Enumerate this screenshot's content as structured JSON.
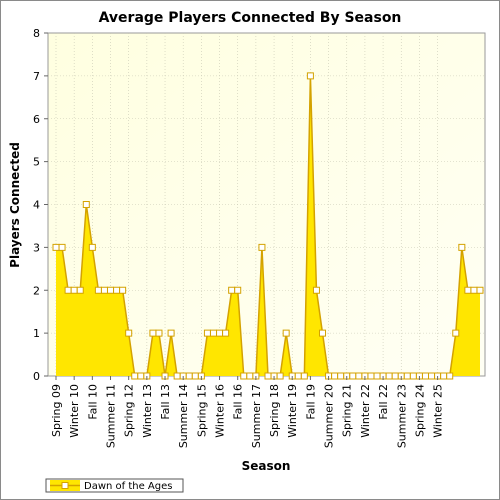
{
  "chart_data": {
    "type": "area",
    "title": "Average Players Connected By Season",
    "xlabel": "Season",
    "ylabel": "Players Connected",
    "ylim": [
      0,
      8
    ],
    "yticks": [
      0,
      1,
      2,
      3,
      4,
      5,
      6,
      7,
      8
    ],
    "grid": true,
    "legend_position": "bottom-left",
    "x_tick_labels": [
      "Spring 09",
      "Winter 10",
      "Fall 10",
      "Summer 11",
      "Spring 12",
      "Winter 13",
      "Fall 13",
      "Summer 14",
      "Spring 15",
      "Winter 16",
      "Fall 16",
      "Summer 17",
      "Spring 18",
      "Winter 19",
      "Fall 19",
      "Summer 20",
      "Spring 21",
      "Winter 22",
      "Fall 22",
      "Summer 23",
      "Spring 24",
      "Winter 25"
    ],
    "x_tick_every": 3,
    "series": [
      {
        "name": "Dawn of the Ages",
        "color": "#ffe600",
        "line_color": "#d4a200",
        "values": [
          3,
          3,
          2,
          2,
          2,
          4,
          3,
          2,
          2,
          2,
          2,
          2,
          1,
          0,
          0,
          0,
          1,
          1,
          0,
          1,
          0,
          0,
          0,
          0,
          0,
          1,
          1,
          1,
          1,
          2,
          2,
          0,
          0,
          0,
          3,
          0,
          0,
          0,
          1,
          0,
          0,
          0,
          7,
          2,
          1,
          0,
          0,
          0,
          0,
          0,
          0,
          0,
          0,
          0,
          0,
          0,
          0,
          0,
          0,
          0,
          0,
          0,
          0,
          0,
          0,
          0,
          1,
          3,
          2,
          2,
          2
        ]
      }
    ]
  }
}
